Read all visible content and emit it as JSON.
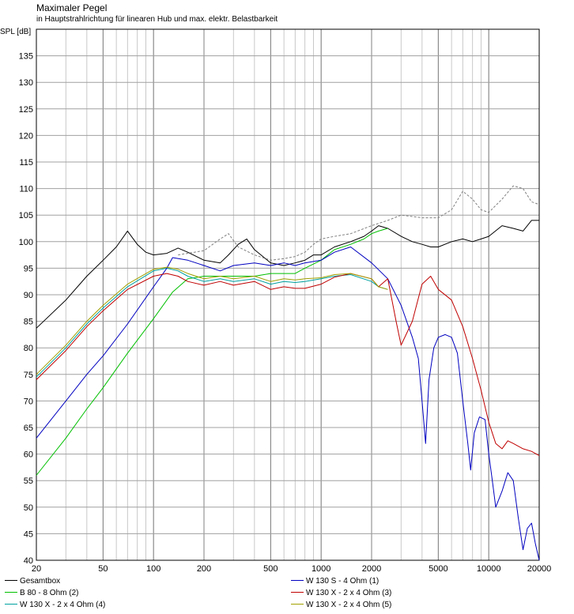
{
  "chart_data": {
    "type": "line",
    "title": "Maximaler Pegel",
    "subtitle": "in Hauptstrahlrichtung für linearen Hub und max. elektr. Belastbarkeit",
    "ylabel": "SPL [dB]",
    "xscale": "log",
    "xlim": [
      20,
      20000
    ],
    "ylim": [
      40,
      140
    ],
    "x_ticks": [
      20,
      50,
      100,
      200,
      500,
      1000,
      2000,
      5000,
      10000,
      20000
    ],
    "x_tick_labels": [
      "20",
      "50",
      "100",
      "200",
      "500",
      "1000",
      "2000",
      "5000",
      "10000",
      "20000"
    ],
    "y_ticks": [
      40,
      45,
      50,
      55,
      60,
      65,
      70,
      75,
      80,
      85,
      90,
      95,
      100,
      105,
      110,
      115,
      120,
      125,
      130,
      135
    ],
    "y_tick_labels": [
      "40",
      "45",
      "50",
      "55",
      "60",
      "65",
      "70",
      "75",
      "80",
      "85",
      "90",
      "95",
      "100",
      "105",
      "110",
      "115",
      "120",
      "125",
      "130",
      "135"
    ],
    "grid": true,
    "series": [
      {
        "name": "Gesamtbox",
        "color": "#000000",
        "style": "solid",
        "points": [
          [
            20,
            83.7
          ],
          [
            30,
            89
          ],
          [
            40,
            93.5
          ],
          [
            50,
            96.5
          ],
          [
            60,
            99
          ],
          [
            70,
            102
          ],
          [
            80,
            99.5
          ],
          [
            90,
            98
          ],
          [
            100,
            97.5
          ],
          [
            120,
            97.8
          ],
          [
            140,
            98.8
          ],
          [
            160,
            98
          ],
          [
            200,
            96.5
          ],
          [
            250,
            96
          ],
          [
            280,
            97.5
          ],
          [
            320,
            99.5
          ],
          [
            360,
            100.5
          ],
          [
            400,
            98.5
          ],
          [
            500,
            96
          ],
          [
            600,
            95.5
          ],
          [
            700,
            96
          ],
          [
            800,
            96.5
          ],
          [
            900,
            97.5
          ],
          [
            1000,
            97.5
          ],
          [
            1200,
            99
          ],
          [
            1500,
            100
          ],
          [
            1800,
            101
          ],
          [
            2000,
            102
          ],
          [
            2200,
            103
          ],
          [
            2500,
            102.5
          ],
          [
            3000,
            101
          ],
          [
            3500,
            100
          ],
          [
            4000,
            99.5
          ],
          [
            4500,
            99
          ],
          [
            5000,
            99
          ],
          [
            6000,
            100
          ],
          [
            7000,
            100.5
          ],
          [
            8000,
            100
          ],
          [
            9000,
            100.5
          ],
          [
            10000,
            101
          ],
          [
            12000,
            103
          ],
          [
            14000,
            102.5
          ],
          [
            16000,
            102
          ],
          [
            18000,
            104
          ],
          [
            20000,
            104
          ]
        ]
      },
      {
        "name": "",
        "color": "#808080",
        "style": "dashed",
        "points": [
          [
            140,
            97.5
          ],
          [
            200,
            98.3
          ],
          [
            250,
            100.5
          ],
          [
            280,
            101.5
          ],
          [
            320,
            99
          ],
          [
            400,
            97.5
          ],
          [
            500,
            96.5
          ],
          [
            600,
            96.8
          ],
          [
            700,
            97.2
          ],
          [
            800,
            98
          ],
          [
            900,
            99.5
          ],
          [
            1000,
            100.5
          ],
          [
            1200,
            101
          ],
          [
            1500,
            101.5
          ],
          [
            2000,
            103
          ],
          [
            2500,
            104
          ],
          [
            3000,
            105
          ],
          [
            4000,
            104.5
          ],
          [
            5000,
            104.5
          ],
          [
            6000,
            106
          ],
          [
            7000,
            109.5
          ],
          [
            8000,
            108
          ],
          [
            9000,
            106
          ],
          [
            10000,
            105.5
          ],
          [
            12000,
            108
          ],
          [
            14000,
            110.5
          ],
          [
            16000,
            110
          ],
          [
            18000,
            107.5
          ],
          [
            20000,
            107
          ]
        ]
      },
      {
        "name": "B 80 - 8 Ohm (2)",
        "color": "#00c000",
        "style": "solid",
        "points": [
          [
            20,
            56
          ],
          [
            30,
            63
          ],
          [
            40,
            68.5
          ],
          [
            50,
            72.5
          ],
          [
            70,
            79
          ],
          [
            100,
            85.5
          ],
          [
            130,
            90.5
          ],
          [
            160,
            93
          ],
          [
            200,
            93.5
          ],
          [
            250,
            93.5
          ],
          [
            300,
            93.5
          ],
          [
            400,
            93.5
          ],
          [
            500,
            94
          ],
          [
            600,
            94
          ],
          [
            700,
            94
          ],
          [
            800,
            95
          ],
          [
            1000,
            96.5
          ],
          [
            1200,
            98.5
          ],
          [
            1500,
            99.5
          ],
          [
            1800,
            100.5
          ],
          [
            2000,
            101.5
          ],
          [
            2200,
            102
          ],
          [
            2500,
            102.5
          ]
        ]
      },
      {
        "name": "W 130 X - 2 x 4 Ohm (4)",
        "color": "#00a0a0",
        "style": "solid",
        "points": [
          [
            20,
            74.5
          ],
          [
            30,
            80
          ],
          [
            40,
            84.5
          ],
          [
            50,
            87.5
          ],
          [
            70,
            91.5
          ],
          [
            100,
            94.5
          ],
          [
            120,
            95
          ],
          [
            140,
            94.5
          ],
          [
            160,
            93.5
          ],
          [
            200,
            92.5
          ],
          [
            250,
            93
          ],
          [
            300,
            92.5
          ],
          [
            400,
            93
          ],
          [
            500,
            92
          ],
          [
            600,
            92.5
          ],
          [
            700,
            92.3
          ],
          [
            800,
            92.5
          ],
          [
            1000,
            93
          ],
          [
            1200,
            93.5
          ],
          [
            1500,
            93.8
          ],
          [
            2000,
            92.5
          ],
          [
            2200,
            91.5
          ],
          [
            2500,
            91
          ]
        ]
      },
      {
        "name": "W 130 S - 4 Ohm (1)",
        "color": "#0000c0",
        "style": "solid",
        "points": [
          [
            20,
            63
          ],
          [
            30,
            70
          ],
          [
            40,
            75
          ],
          [
            50,
            78.5
          ],
          [
            70,
            84.5
          ],
          [
            100,
            91.5
          ],
          [
            120,
            95
          ],
          [
            130,
            97
          ],
          [
            160,
            96.5
          ],
          [
            200,
            95.5
          ],
          [
            250,
            94.5
          ],
          [
            300,
            95.5
          ],
          [
            400,
            96
          ],
          [
            500,
            95.5
          ],
          [
            600,
            96
          ],
          [
            700,
            95.5
          ],
          [
            800,
            96
          ],
          [
            1000,
            96.5
          ],
          [
            1200,
            98
          ],
          [
            1500,
            99
          ],
          [
            2000,
            96
          ],
          [
            2500,
            93
          ],
          [
            3000,
            88
          ],
          [
            3500,
            82
          ],
          [
            3800,
            78
          ],
          [
            4000,
            70
          ],
          [
            4200,
            62
          ],
          [
            4400,
            74
          ],
          [
            4700,
            80
          ],
          [
            5000,
            82
          ],
          [
            5500,
            82.5
          ],
          [
            6000,
            82
          ],
          [
            6500,
            79
          ],
          [
            7000,
            70
          ],
          [
            7500,
            62
          ],
          [
            7800,
            57
          ],
          [
            8200,
            64
          ],
          [
            8800,
            67
          ],
          [
            9500,
            66.5
          ],
          [
            10000,
            60
          ],
          [
            10500,
            55
          ],
          [
            11000,
            50
          ],
          [
            12000,
            53
          ],
          [
            13000,
            56.5
          ],
          [
            14000,
            55
          ],
          [
            15000,
            48
          ],
          [
            16000,
            42
          ],
          [
            17000,
            46
          ],
          [
            18000,
            47
          ],
          [
            19000,
            43
          ],
          [
            20000,
            40
          ]
        ]
      },
      {
        "name": "W 130 X - 2 x 4 Ohm (3)",
        "color": "#c00000",
        "style": "solid",
        "points": [
          [
            20,
            74
          ],
          [
            30,
            79.5
          ],
          [
            40,
            84
          ],
          [
            50,
            87
          ],
          [
            70,
            91
          ],
          [
            100,
            93.5
          ],
          [
            120,
            94
          ],
          [
            140,
            93.5
          ],
          [
            160,
            92.5
          ],
          [
            200,
            91.8
          ],
          [
            250,
            92.5
          ],
          [
            300,
            91.8
          ],
          [
            400,
            92.5
          ],
          [
            500,
            91
          ],
          [
            600,
            91.5
          ],
          [
            700,
            91.2
          ],
          [
            800,
            91.2
          ],
          [
            1000,
            92
          ],
          [
            1200,
            93.3
          ],
          [
            1500,
            94
          ],
          [
            2000,
            93
          ],
          [
            2200,
            91.5
          ],
          [
            2500,
            93
          ],
          [
            2800,
            85
          ],
          [
            3000,
            80.5
          ],
          [
            3500,
            85
          ],
          [
            4000,
            92
          ],
          [
            4500,
            93.5
          ],
          [
            5000,
            91
          ],
          [
            6000,
            89
          ],
          [
            7000,
            84
          ],
          [
            8000,
            78
          ],
          [
            9000,
            72
          ],
          [
            10000,
            66
          ],
          [
            11000,
            62
          ],
          [
            12000,
            61
          ],
          [
            13000,
            62.5
          ],
          [
            14000,
            62
          ],
          [
            16000,
            61
          ],
          [
            18000,
            60.5
          ],
          [
            20000,
            59.7
          ]
        ]
      },
      {
        "name": "W 130 X - 2 x 4 Ohm (5)",
        "color": "#a0a000",
        "style": "solid",
        "points": [
          [
            20,
            75
          ],
          [
            30,
            80.5
          ],
          [
            40,
            85
          ],
          [
            50,
            88
          ],
          [
            70,
            92
          ],
          [
            100,
            94.8
          ],
          [
            120,
            95.2
          ],
          [
            140,
            94.8
          ],
          [
            160,
            94
          ],
          [
            200,
            93
          ],
          [
            250,
            93.5
          ],
          [
            300,
            93
          ],
          [
            400,
            93.5
          ],
          [
            500,
            92.5
          ],
          [
            600,
            93
          ],
          [
            700,
            92.8
          ],
          [
            800,
            93
          ],
          [
            1000,
            93.2
          ],
          [
            1200,
            93.8
          ],
          [
            1500,
            94
          ],
          [
            2000,
            93
          ],
          [
            2200,
            91.5
          ],
          [
            2500,
            91
          ]
        ]
      }
    ],
    "legend": [
      {
        "label": "Gesamtbox",
        "color": "#000000"
      },
      {
        "label": "B 80 - 8 Ohm (2)",
        "color": "#00c000"
      },
      {
        "label": "W 130 X - 2 x 4 Ohm (4)",
        "color": "#00a0a0"
      },
      {
        "label": "W 130 S - 4 Ohm (1)",
        "color": "#0000c0"
      },
      {
        "label": "W 130 X - 2 x 4 Ohm (3)",
        "color": "#c00000"
      },
      {
        "label": "W 130 X - 2 x 4 Ohm (5)",
        "color": "#a0a000"
      }
    ],
    "legend_position": "bottom"
  }
}
